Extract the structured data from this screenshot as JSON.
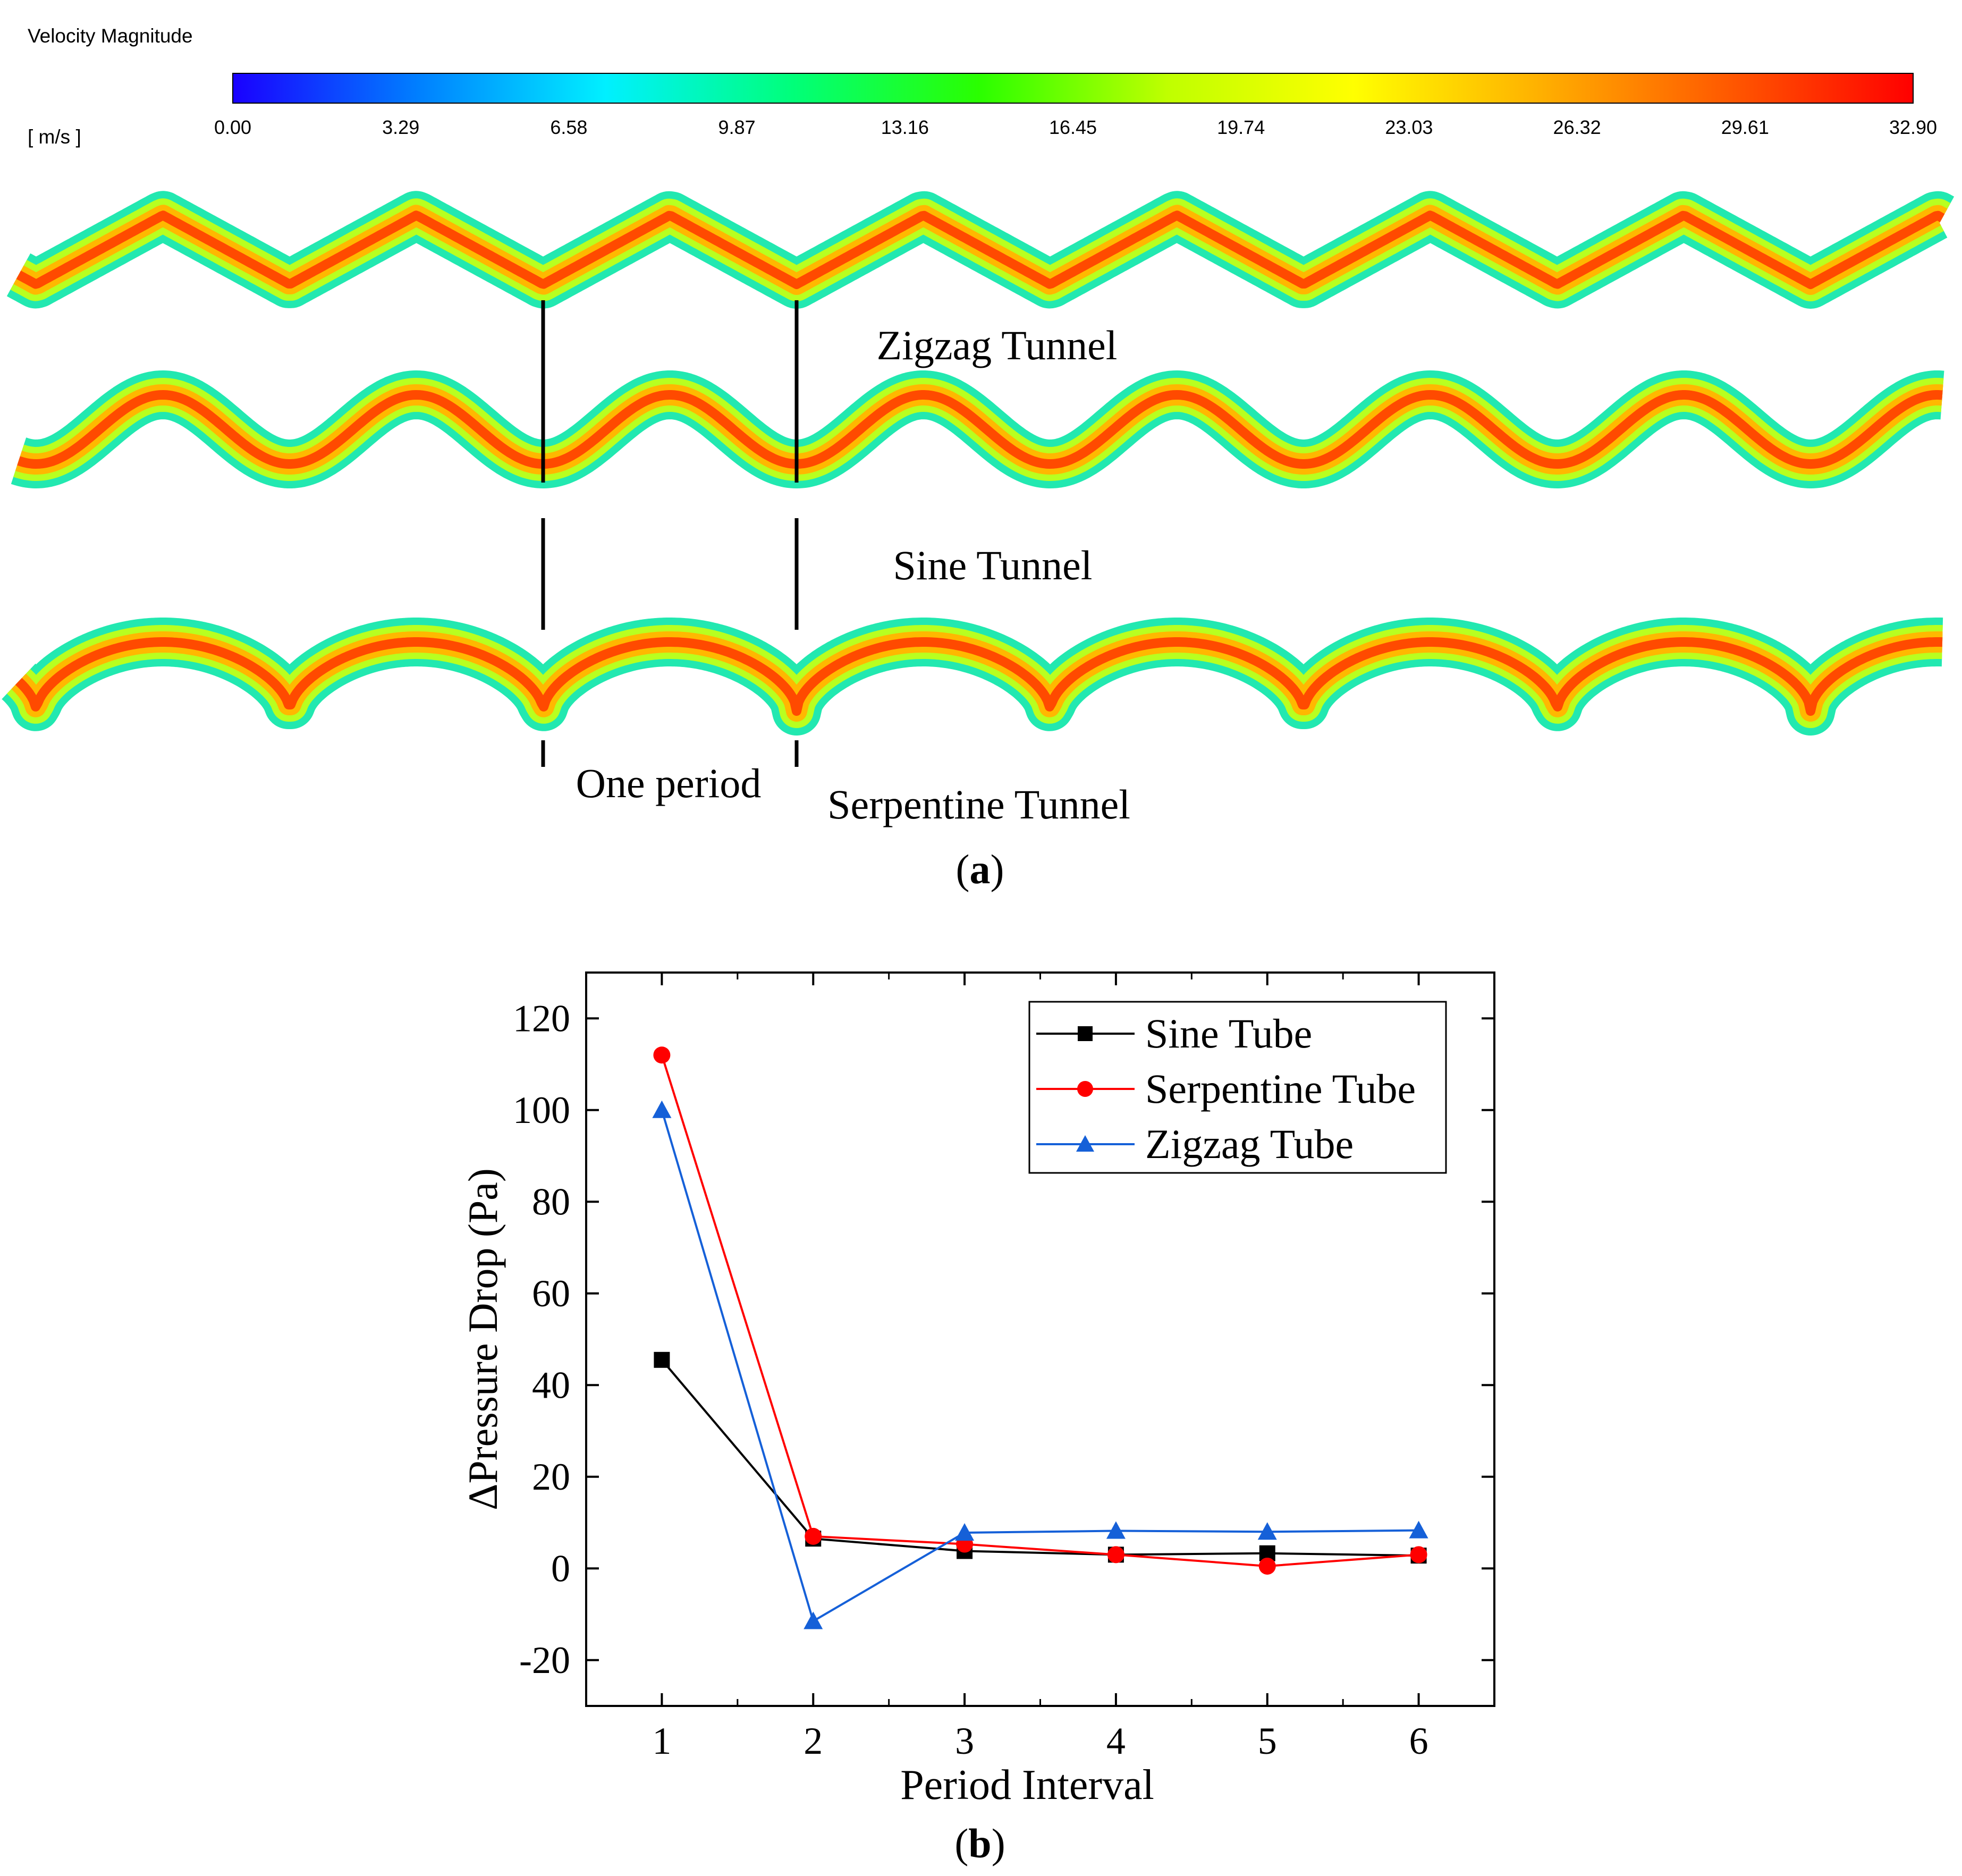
{
  "panel_a": {
    "legend_title": "Velocity Magnitude",
    "unit": "[ m/s ]",
    "colorbar_ticks": [
      "0.00",
      "3.29",
      "6.58",
      "9.87",
      "13.16",
      "16.45",
      "19.74",
      "23.03",
      "26.32",
      "29.61",
      "32.90"
    ],
    "colormap": [
      "#1a00ff",
      "#0080ff",
      "#00f0ff",
      "#00ff7a",
      "#2aff00",
      "#bfff00",
      "#ffff00",
      "#ffb000",
      "#ff5a00",
      "#ff0000"
    ],
    "tunnel_labels": {
      "zigzag": "Zigzag Tunnel",
      "sine": "Sine Tunnel",
      "serpentine": "Serpentine Tunnel"
    },
    "period_label": "One period",
    "caption": "a"
  },
  "chart_data": {
    "type": "line",
    "title": "",
    "xlabel": "Period Interval",
    "ylabel": "ΔPressure Drop (Pa)",
    "x": [
      1,
      2,
      3,
      4,
      5,
      6
    ],
    "xlim": [
      0.5,
      6.5
    ],
    "ylim": [
      -30,
      130
    ],
    "xticks": [
      1,
      2,
      3,
      4,
      5,
      6
    ],
    "yticks": [
      -20,
      0,
      20,
      40,
      60,
      80,
      100,
      120
    ],
    "legend_position": "top-right",
    "series": [
      {
        "name": "Sine Tube",
        "color": "#000000",
        "marker": "square",
        "values": [
          45.5,
          6.5,
          3.8,
          3.0,
          3.3,
          2.8
        ]
      },
      {
        "name": "Serpentine Tube",
        "color": "#ff0000",
        "marker": "circle",
        "values": [
          112,
          7.0,
          5.3,
          3.0,
          0.5,
          3.0
        ]
      },
      {
        "name": "Zigzag Tube",
        "color": "#1560d8",
        "marker": "triangle",
        "values": [
          100,
          -11.5,
          7.8,
          8.2,
          8.0,
          8.3
        ]
      }
    ],
    "caption": "b"
  }
}
